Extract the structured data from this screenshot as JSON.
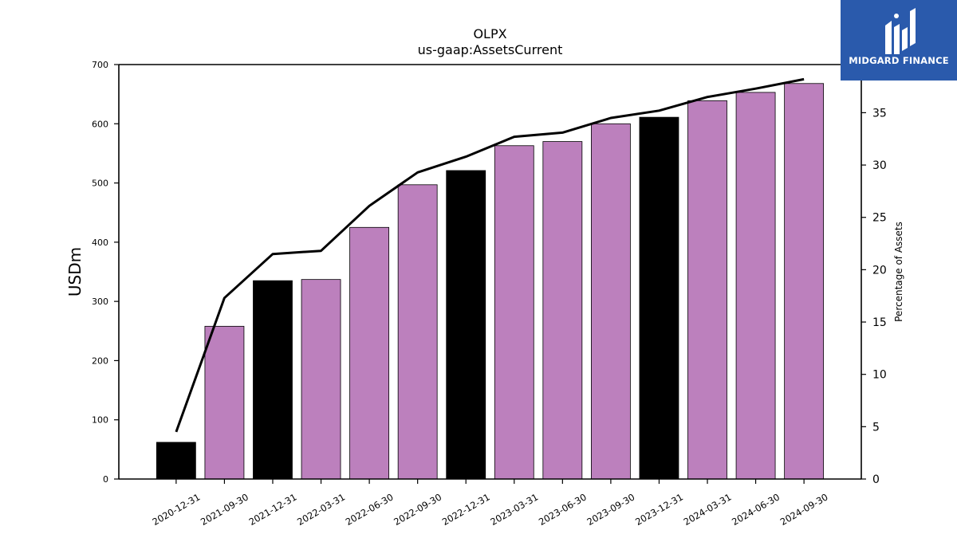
{
  "chart_data": {
    "type": "bar",
    "title": "OLPX",
    "subtitle": "us-gaap:AssetsCurrent",
    "ylabel": "USDm",
    "y2label": "Percentage of Assets",
    "ylim": [
      0,
      700
    ],
    "y2lim": [
      0,
      39.6
    ],
    "yticks": [
      0,
      100,
      200,
      300,
      400,
      500,
      600,
      700
    ],
    "y2ticks": [
      0,
      5,
      10,
      15,
      20,
      25,
      30,
      35
    ],
    "categories": [
      "2020-12-31",
      "2021-09-30",
      "2021-12-31",
      "2022-03-31",
      "2022-06-30",
      "2022-09-30",
      "2022-12-31",
      "2023-03-31",
      "2023-06-30",
      "2023-09-30",
      "2023-12-31",
      "2024-03-31",
      "2024-06-30",
      "2024-09-30"
    ],
    "series": [
      {
        "type": "bar",
        "axis": "left",
        "values": [
          62,
          258,
          335,
          337,
          425,
          497,
          521,
          563,
          570,
          600,
          611,
          639,
          653,
          668
        ],
        "colors": [
          "#000000",
          "#bc80bd",
          "#000000",
          "#bc80bd",
          "#bc80bd",
          "#bc80bd",
          "#000000",
          "#bc80bd",
          "#bc80bd",
          "#bc80bd",
          "#000000",
          "#bc80bd",
          "#bc80bd",
          "#bc80bd"
        ]
      },
      {
        "type": "line",
        "axis": "right",
        "color": "#000000",
        "values": [
          4.5,
          17.3,
          21.5,
          21.8,
          26.1,
          29.3,
          30.8,
          32.7,
          33.1,
          34.5,
          35.2,
          36.5,
          37.3,
          38.2
        ]
      }
    ],
    "grid": false,
    "legend": "none"
  },
  "logo": {
    "text": "MIDGARD FINANCE",
    "background": "#2a5aac",
    "color": "#ffffff"
  }
}
